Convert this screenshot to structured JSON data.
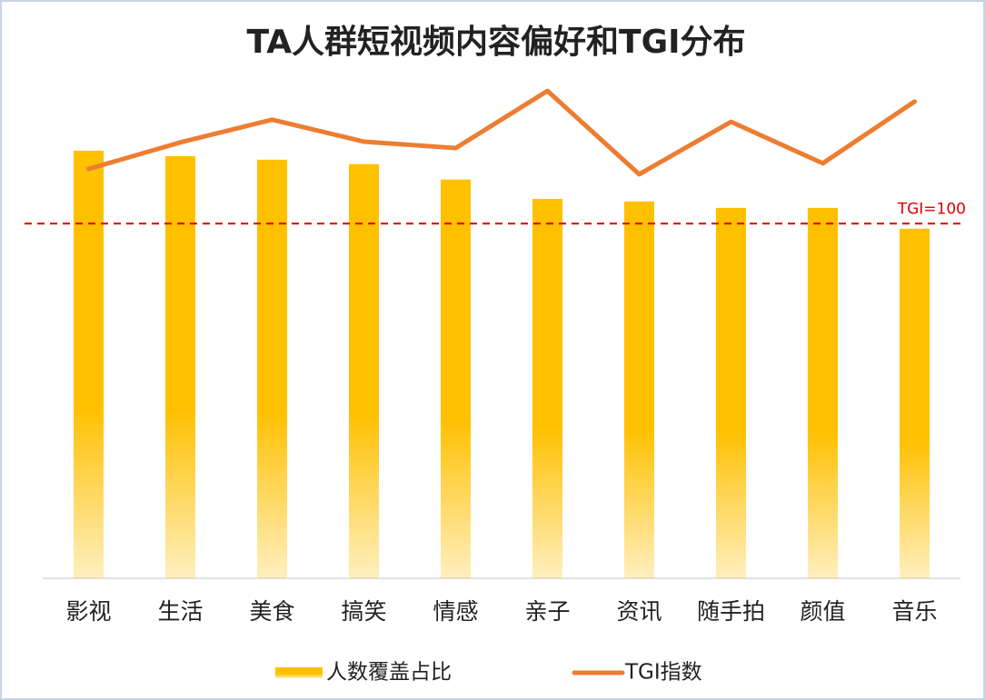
{
  "chart_data": {
    "type": "bar_line",
    "title": "TA人群短视频内容偏好和TGI分布",
    "categories": [
      "影视",
      "生活",
      "美食",
      "搞笑",
      "情感",
      "亲子",
      "资讯",
      "随手拍",
      "颜值",
      "音乐"
    ],
    "series": [
      {
        "name": "人数覆盖占比",
        "type": "bar",
        "color": "#FFC000",
        "values": [
          86.1,
          85.0,
          84.3,
          83.4,
          80.3,
          76.4,
          75.9,
          74.6,
          74.6,
          70.4
        ]
      },
      {
        "name": "TGI指数",
        "type": "line",
        "axis": "y2",
        "color": "#ED7D31",
        "values": [
          115.4,
          122.9,
          129.3,
          123.1,
          121.3,
          137.4,
          113.9,
          128.7,
          117.0,
          134.4
        ]
      }
    ],
    "ylim": [
      0,
      100
    ],
    "y2lim": [
      0,
      140
    ],
    "reference_line": {
      "value": 100,
      "label": "TGI=100",
      "axis": "y2",
      "color": "#E00000"
    },
    "legend": "bottom"
  }
}
